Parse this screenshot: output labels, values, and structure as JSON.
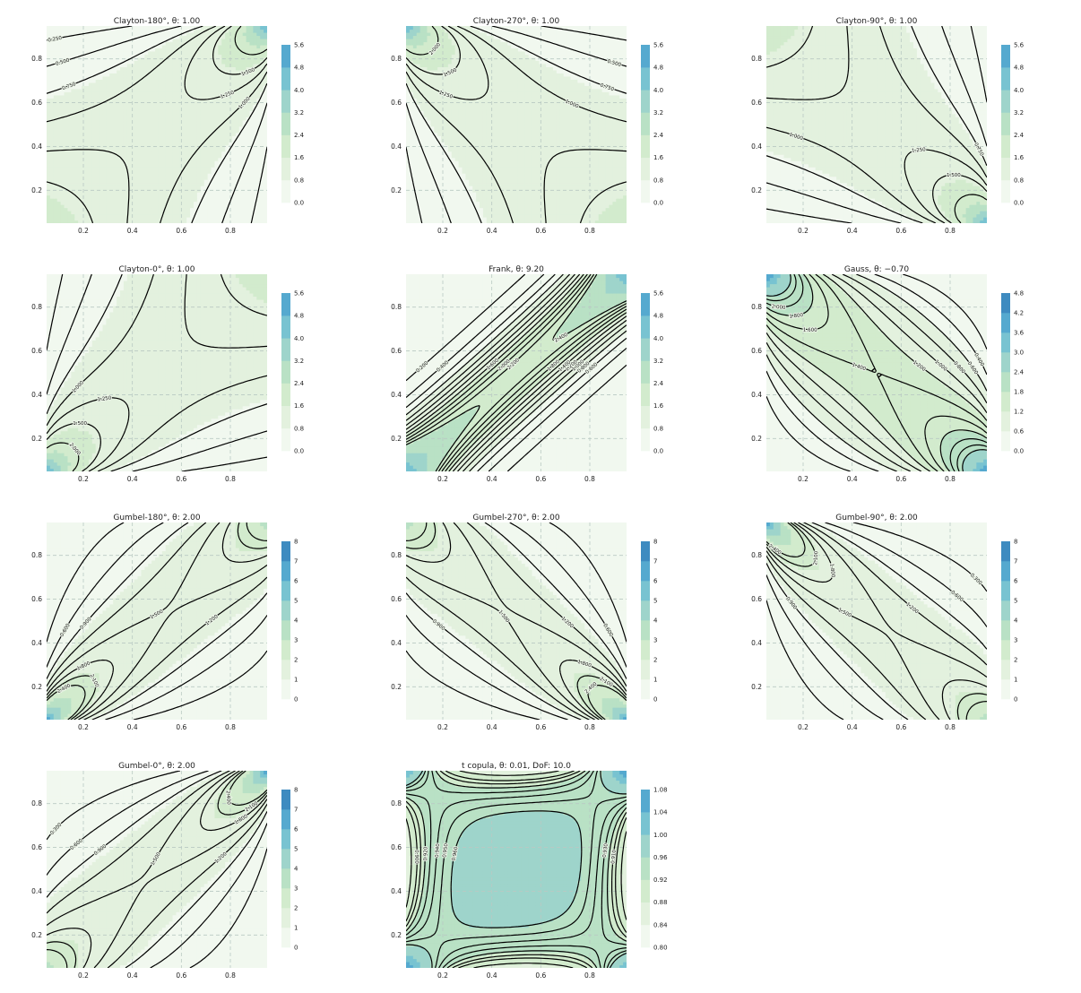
{
  "colors": {
    "levels": [
      "#f1f8ef",
      "#e3f1de",
      "#d2ebcd",
      "#b9e1c5",
      "#9ed4cb",
      "#78c3d1",
      "#55a9cf",
      "#3e8bc0",
      "#2a6ea9"
    ],
    "line": "#000000",
    "grid": "#b9c9c3"
  },
  "chart_data": [
    {
      "type": "heatmap",
      "family": "clayton",
      "rotation": 180,
      "theta": 1.0,
      "title": "Clayton-180°, θ: 1.00",
      "x_ticks": [
        "0.2",
        "0.4",
        "0.6",
        "0.8"
      ],
      "y_ticks": [
        "0.2",
        "0.4",
        "0.6",
        "0.8"
      ],
      "contour_labels": [
        "0.250",
        "0.500",
        "0.750",
        "1.000",
        "1.250",
        "1.500",
        "2.000"
      ],
      "colorbar": {
        "ticks": [
          "0.0",
          "0.8",
          "1.6",
          "2.4",
          "3.2",
          "4.0",
          "4.8",
          "5.6"
        ],
        "max": 5.6
      }
    },
    {
      "type": "heatmap",
      "family": "clayton",
      "rotation": 270,
      "theta": 1.0,
      "title": "Clayton-270°, θ: 1.00",
      "x_ticks": [
        "0.2",
        "0.4",
        "0.6",
        "0.8"
      ],
      "y_ticks": [
        "0.2",
        "0.4",
        "0.6",
        "0.8"
      ],
      "contour_labels": [
        "0.250",
        "0.500",
        "0.750",
        "1.000",
        "1.250",
        "1.500",
        "2.000"
      ],
      "colorbar": {
        "ticks": [
          "0.0",
          "0.8",
          "1.6",
          "2.4",
          "3.2",
          "4.0",
          "4.8",
          "5.6"
        ],
        "max": 5.6
      }
    },
    {
      "type": "heatmap",
      "family": "clayton",
      "rotation": 90,
      "theta": 1.0,
      "title": "Clayton-90°, θ: 1.00",
      "x_ticks": [
        "0.2",
        "0.4",
        "0.6",
        "0.8"
      ],
      "y_ticks": [
        "0.2",
        "0.4",
        "0.6",
        "0.8"
      ],
      "contour_labels": [
        "0.250",
        "0.500",
        "0.750",
        "1.000",
        "1.250",
        "1.500",
        "2.000"
      ],
      "colorbar": {
        "ticks": [
          "0.0",
          "0.8",
          "1.6",
          "2.4",
          "3.2",
          "4.0",
          "4.8",
          "5.6"
        ],
        "max": 5.6
      }
    },
    {
      "type": "heatmap",
      "family": "clayton",
      "rotation": 0,
      "theta": 1.0,
      "title": "Clayton-0°, θ: 1.00",
      "x_ticks": [
        "0.2",
        "0.4",
        "0.6",
        "0.8"
      ],
      "y_ticks": [
        "0.2",
        "0.4",
        "0.6",
        "0.8"
      ],
      "contour_labels": [
        "0.250",
        "0.500",
        "0.750",
        "1.000",
        "1.250",
        "1.500",
        "2.000"
      ],
      "colorbar": {
        "ticks": [
          "0.0",
          "0.8",
          "1.6",
          "2.4",
          "3.2",
          "4.0",
          "4.8",
          "5.6"
        ],
        "max": 5.6
      }
    },
    {
      "type": "heatmap",
      "family": "frank",
      "rotation": 0,
      "theta": 9.2,
      "title": "Frank, θ: 9.20",
      "x_ticks": [
        "0.2",
        "0.4",
        "0.6",
        "0.8"
      ],
      "y_ticks": [
        "0.2",
        "0.4",
        "0.6",
        "0.8"
      ],
      "contour_labels": [
        "0.200",
        "0.400",
        "0.600",
        "0.800",
        "1.000",
        "1.200",
        "1.400",
        "1.600",
        "1.800",
        "2.000",
        "2.200",
        "2.400"
      ],
      "colorbar": {
        "ticks": [
          "0.0",
          "0.8",
          "1.6",
          "2.4",
          "3.2",
          "4.0",
          "4.8",
          "5.6"
        ],
        "max": 5.6
      }
    },
    {
      "type": "heatmap",
      "family": "gauss",
      "rotation": 0,
      "theta": -0.7,
      "title": "Gauss, θ: −0.70",
      "x_ticks": [
        "0.2",
        "0.4",
        "0.6",
        "0.8"
      ],
      "y_ticks": [
        "0.2",
        "0.4",
        "0.6",
        "0.8"
      ],
      "contour_labels": [
        "0.200",
        "0.400",
        "0.600",
        "0.800",
        "1.000",
        "1.200",
        "1.400",
        "1.600",
        "1.800",
        "2.000",
        "2.200",
        "2.400"
      ],
      "colorbar": {
        "ticks": [
          "0.0",
          "0.6",
          "1.2",
          "1.8",
          "2.4",
          "3.0",
          "3.6",
          "4.2",
          "4.8"
        ],
        "max": 4.8
      }
    },
    {
      "type": "heatmap",
      "family": "gumbel",
      "rotation": 180,
      "theta": 2.0,
      "title": "Gumbel-180°, θ: 2.00",
      "x_ticks": [
        "0.2",
        "0.4",
        "0.6",
        "0.8"
      ],
      "y_ticks": [
        "0.2",
        "0.4",
        "0.6",
        "0.8"
      ],
      "contour_labels": [
        "0.300",
        "0.600",
        "0.900",
        "1.200",
        "1.500",
        "1.800",
        "2.100",
        "2.400"
      ],
      "colorbar": {
        "ticks": [
          "0",
          "1",
          "2",
          "3",
          "4",
          "5",
          "6",
          "7",
          "8"
        ],
        "max": 8
      }
    },
    {
      "type": "heatmap",
      "family": "gumbel",
      "rotation": 270,
      "theta": 2.0,
      "title": "Gumbel-270°, θ: 2.00",
      "x_ticks": [
        "0.2",
        "0.4",
        "0.6",
        "0.8"
      ],
      "y_ticks": [
        "0.2",
        "0.4",
        "0.6",
        "0.8"
      ],
      "contour_labels": [
        "0.300",
        "0.600",
        "0.900",
        "1.200",
        "1.500",
        "1.800",
        "2.100",
        "2.400"
      ],
      "colorbar": {
        "ticks": [
          "0",
          "1",
          "2",
          "3",
          "4",
          "5",
          "6",
          "7",
          "8"
        ],
        "max": 8
      }
    },
    {
      "type": "heatmap",
      "family": "gumbel",
      "rotation": 90,
      "theta": 2.0,
      "title": "Gumbel-90°, θ: 2.00",
      "x_ticks": [
        "0.2",
        "0.4",
        "0.6",
        "0.8"
      ],
      "y_ticks": [
        "0.2",
        "0.4",
        "0.6",
        "0.8"
      ],
      "contour_labels": [
        "0.300",
        "0.600",
        "0.900",
        "1.200",
        "1.500",
        "1.800",
        "2.100",
        "2.400"
      ],
      "colorbar": {
        "ticks": [
          "0",
          "1",
          "2",
          "3",
          "4",
          "5",
          "6",
          "7",
          "8"
        ],
        "max": 8
      }
    },
    {
      "type": "heatmap",
      "family": "gumbel",
      "rotation": 0,
      "theta": 2.0,
      "title": "Gumbel-0°, θ: 2.00",
      "x_ticks": [
        "0.2",
        "0.4",
        "0.6",
        "0.8"
      ],
      "y_ticks": [
        "0.2",
        "0.4",
        "0.6",
        "0.8"
      ],
      "contour_labels": [
        "0.300",
        "0.600",
        "0.900",
        "1.200",
        "1.500",
        "1.800",
        "2.100",
        "2.400"
      ],
      "colorbar": {
        "ticks": [
          "0",
          "1",
          "2",
          "3",
          "4",
          "5",
          "6",
          "7",
          "8"
        ],
        "max": 8
      }
    },
    {
      "type": "heatmap",
      "family": "t",
      "rotation": 0,
      "theta": 0.01,
      "dof": 10.0,
      "title": "t copula, θ: 0.01, DoF: 10.0",
      "x_ticks": [
        "0.2",
        "0.4",
        "0.6",
        "0.8"
      ],
      "y_ticks": [
        "0.2",
        "0.4",
        "0.6",
        "0.8"
      ],
      "contour_labels": [
        "0.880",
        "0.900",
        "0.910",
        "0.920",
        "0.930",
        "0.940",
        "0.950",
        "0.960"
      ],
      "colorbar": {
        "ticks": [
          "0.80",
          "0.84",
          "0.88",
          "0.92",
          "0.96",
          "1.00",
          "1.04",
          "1.08"
        ],
        "max": 1.08
      }
    }
  ]
}
